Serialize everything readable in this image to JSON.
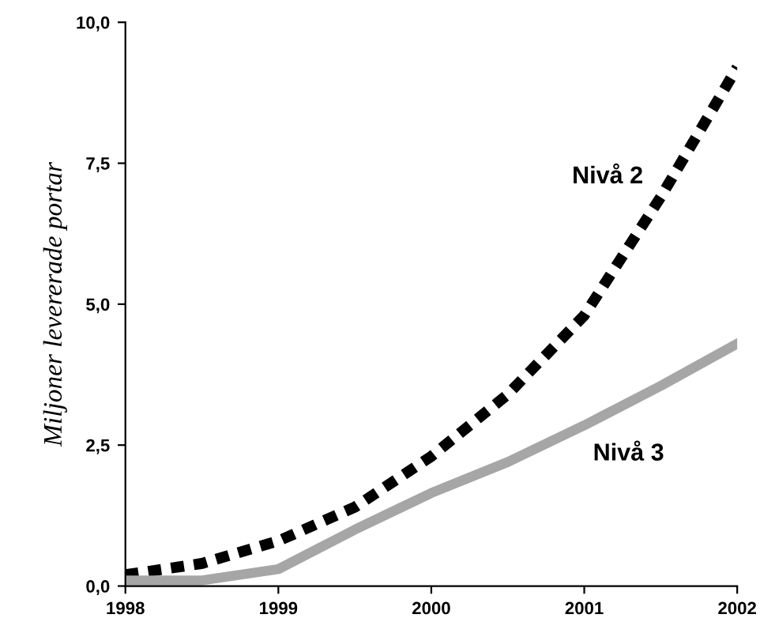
{
  "chart_data": {
    "type": "line",
    "ylabel": "Miljoner levererade portar",
    "x": [
      1998,
      1998.5,
      1999,
      1999.5,
      2000,
      2000.5,
      2001,
      2001.5,
      2002
    ],
    "series": [
      {
        "name": "Nivå 2",
        "color": "#000000",
        "line_style": "dotted",
        "values": [
          0.2,
          0.4,
          0.8,
          1.4,
          2.3,
          3.4,
          4.8,
          6.9,
          9.2
        ]
      },
      {
        "name": "Nivå 3",
        "color": "#a6a6a6",
        "line_style": "solid",
        "values": [
          0.1,
          0.1,
          0.3,
          1.0,
          1.65,
          2.2,
          2.85,
          3.55,
          4.3
        ]
      }
    ],
    "xlim": [
      1998,
      2002
    ],
    "xticks": [
      1998,
      1999,
      2000,
      2001,
      2002
    ],
    "ylim": [
      0,
      10
    ],
    "yticks": [
      {
        "value": 0,
        "label": "0,0"
      },
      {
        "value": 2.5,
        "label": "2,5"
      },
      {
        "value": 5,
        "label": "5,0"
      },
      {
        "value": 7.5,
        "label": "7,5"
      },
      {
        "value": 10,
        "label": "10,0"
      }
    ],
    "grid": false,
    "legend": false,
    "marker": "none"
  }
}
